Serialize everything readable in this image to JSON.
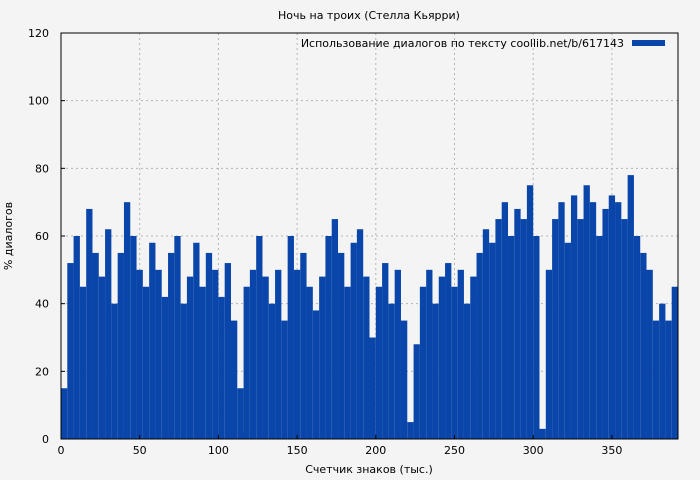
{
  "chart_data": {
    "type": "bar",
    "title": "Ночь на троих (Стелла Кьярри)",
    "xlabel": "Счетчик знаков (тыс.)",
    "ylabel": "% диалогов",
    "xlim": [
      0,
      392
    ],
    "ylim": [
      0,
      120
    ],
    "x_ticks": [
      0,
      50,
      100,
      150,
      200,
      250,
      300,
      350
    ],
    "y_ticks": [
      0,
      20,
      40,
      60,
      80,
      100,
      120
    ],
    "grid": true,
    "legend_position": "top-right",
    "series": [
      {
        "name": "Использование диалогов по тексту coollib.net/b/617143",
        "color": "#0a46aa",
        "x_step": 4,
        "points": [
          [
            2,
            15
          ],
          [
            6,
            52
          ],
          [
            10,
            60
          ],
          [
            14,
            45
          ],
          [
            18,
            68
          ],
          [
            22,
            55
          ],
          [
            26,
            48
          ],
          [
            30,
            62
          ],
          [
            34,
            40
          ],
          [
            38,
            55
          ],
          [
            42,
            70
          ],
          [
            46,
            60
          ],
          [
            50,
            50
          ],
          [
            54,
            45
          ],
          [
            58,
            58
          ],
          [
            62,
            50
          ],
          [
            66,
            42
          ],
          [
            70,
            55
          ],
          [
            74,
            60
          ],
          [
            78,
            40
          ],
          [
            82,
            48
          ],
          [
            86,
            58
          ],
          [
            90,
            45
          ],
          [
            94,
            55
          ],
          [
            98,
            50
          ],
          [
            102,
            42
          ],
          [
            106,
            52
          ],
          [
            110,
            35
          ],
          [
            114,
            15
          ],
          [
            116,
            2
          ],
          [
            118,
            45
          ],
          [
            122,
            50
          ],
          [
            126,
            60
          ],
          [
            130,
            48
          ],
          [
            134,
            40
          ],
          [
            138,
            50
          ],
          [
            142,
            35
          ],
          [
            146,
            60
          ],
          [
            150,
            50
          ],
          [
            154,
            55
          ],
          [
            158,
            45
          ],
          [
            162,
            38
          ],
          [
            166,
            48
          ],
          [
            170,
            60
          ],
          [
            174,
            65
          ],
          [
            178,
            55
          ],
          [
            182,
            45
          ],
          [
            186,
            58
          ],
          [
            190,
            62
          ],
          [
            194,
            48
          ],
          [
            198,
            30
          ],
          [
            202,
            45
          ],
          [
            206,
            52
          ],
          [
            210,
            40
          ],
          [
            214,
            50
          ],
          [
            218,
            35
          ],
          [
            222,
            5
          ],
          [
            226,
            28
          ],
          [
            230,
            45
          ],
          [
            234,
            50
          ],
          [
            238,
            40
          ],
          [
            242,
            48
          ],
          [
            246,
            52
          ],
          [
            250,
            45
          ],
          [
            254,
            50
          ],
          [
            258,
            40
          ],
          [
            262,
            48
          ],
          [
            266,
            55
          ],
          [
            270,
            62
          ],
          [
            274,
            58
          ],
          [
            278,
            65
          ],
          [
            282,
            70
          ],
          [
            286,
            60
          ],
          [
            290,
            68
          ],
          [
            294,
            65
          ],
          [
            298,
            75
          ],
          [
            302,
            60
          ],
          [
            306,
            3
          ],
          [
            310,
            50
          ],
          [
            314,
            65
          ],
          [
            318,
            70
          ],
          [
            322,
            58
          ],
          [
            326,
            72
          ],
          [
            330,
            65
          ],
          [
            334,
            75
          ],
          [
            338,
            70
          ],
          [
            342,
            60
          ],
          [
            346,
            68
          ],
          [
            350,
            72
          ],
          [
            354,
            70
          ],
          [
            358,
            65
          ],
          [
            362,
            78
          ],
          [
            366,
            60
          ],
          [
            370,
            55
          ],
          [
            374,
            50
          ],
          [
            378,
            35
          ],
          [
            382,
            40
          ],
          [
            386,
            35
          ],
          [
            390,
            45
          ]
        ]
      }
    ]
  }
}
